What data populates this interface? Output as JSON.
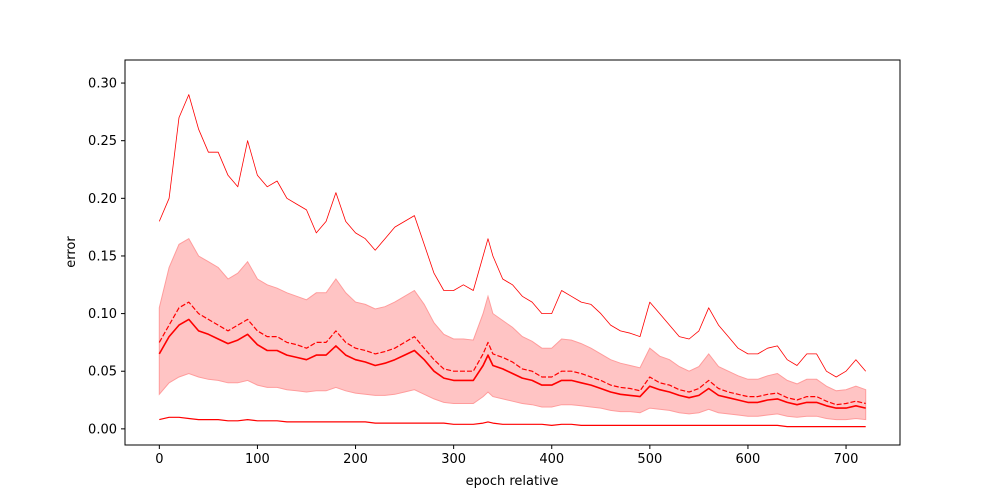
{
  "chart_data": {
    "type": "line",
    "xlabel": "epoch relative",
    "ylabel": "error",
    "xlim": [
      -35,
      755
    ],
    "ylim": [
      -0.014,
      0.32
    ],
    "xticks": [
      0,
      100,
      200,
      300,
      400,
      500,
      600,
      700
    ],
    "yticks": [
      0.0,
      0.05,
      0.1,
      0.15,
      0.2,
      0.25,
      0.3
    ],
    "xtick_labels": [
      "0",
      "100",
      "200",
      "300",
      "400",
      "500",
      "600",
      "700"
    ],
    "ytick_labels": [
      "0.00",
      "0.05",
      "0.10",
      "0.15",
      "0.20",
      "0.25",
      "0.30"
    ],
    "grid": false,
    "legend": "none",
    "colors": {
      "line": "#ff0000",
      "band": "#ffc4c4",
      "band_edge": "#ff9c9c"
    },
    "x": [
      0,
      10,
      20,
      30,
      40,
      50,
      60,
      70,
      80,
      90,
      100,
      110,
      120,
      130,
      140,
      150,
      160,
      170,
      180,
      190,
      200,
      210,
      220,
      230,
      240,
      250,
      260,
      270,
      280,
      290,
      300,
      310,
      320,
      330,
      335,
      340,
      350,
      360,
      370,
      380,
      390,
      400,
      410,
      420,
      430,
      440,
      450,
      460,
      470,
      480,
      490,
      500,
      510,
      520,
      530,
      540,
      550,
      560,
      570,
      580,
      590,
      600,
      610,
      620,
      630,
      640,
      650,
      660,
      670,
      680,
      690,
      700,
      710,
      720
    ],
    "series": [
      {
        "values": [
          0.18,
          0.2,
          0.27,
          0.29,
          0.26,
          0.24,
          0.24,
          0.22,
          0.21,
          0.25,
          0.22,
          0.21,
          0.215,
          0.2,
          0.195,
          0.19,
          0.17,
          0.18,
          0.205,
          0.18,
          0.17,
          0.165,
          0.155,
          0.165,
          0.175,
          0.18,
          0.185,
          0.16,
          0.135,
          0.12,
          0.12,
          0.125,
          0.12,
          0.15,
          0.165,
          0.15,
          0.13,
          0.125,
          0.115,
          0.11,
          0.1,
          0.1,
          0.12,
          0.115,
          0.11,
          0.108,
          0.1,
          0.09,
          0.085,
          0.083,
          0.08,
          0.11,
          0.1,
          0.09,
          0.08,
          0.078,
          0.085,
          0.105,
          0.09,
          0.08,
          0.07,
          0.065,
          0.065,
          0.07,
          0.072,
          0.06,
          0.055,
          0.065,
          0.065,
          0.05,
          0.045,
          0.05,
          0.06,
          0.05
        ]
      },
      {
        "values": [
          0.075,
          0.09,
          0.105,
          0.11,
          0.1,
          0.095,
          0.09,
          0.085,
          0.09,
          0.095,
          0.085,
          0.08,
          0.08,
          0.075,
          0.073,
          0.07,
          0.075,
          0.075,
          0.085,
          0.075,
          0.07,
          0.068,
          0.065,
          0.067,
          0.07,
          0.075,
          0.08,
          0.07,
          0.06,
          0.052,
          0.05,
          0.05,
          0.05,
          0.065,
          0.075,
          0.065,
          0.062,
          0.058,
          0.052,
          0.05,
          0.045,
          0.045,
          0.05,
          0.05,
          0.048,
          0.045,
          0.042,
          0.038,
          0.036,
          0.035,
          0.033,
          0.045,
          0.04,
          0.038,
          0.034,
          0.032,
          0.035,
          0.042,
          0.035,
          0.032,
          0.03,
          0.028,
          0.028,
          0.03,
          0.031,
          0.027,
          0.025,
          0.028,
          0.028,
          0.024,
          0.021,
          0.022,
          0.024,
          0.022
        ]
      },
      {
        "values": [
          0.065,
          0.08,
          0.09,
          0.095,
          0.085,
          0.082,
          0.078,
          0.074,
          0.077,
          0.082,
          0.073,
          0.068,
          0.068,
          0.064,
          0.062,
          0.06,
          0.064,
          0.064,
          0.072,
          0.064,
          0.06,
          0.058,
          0.055,
          0.057,
          0.06,
          0.064,
          0.068,
          0.06,
          0.05,
          0.044,
          0.042,
          0.042,
          0.042,
          0.055,
          0.064,
          0.055,
          0.052,
          0.048,
          0.044,
          0.042,
          0.038,
          0.038,
          0.042,
          0.042,
          0.04,
          0.038,
          0.035,
          0.032,
          0.03,
          0.029,
          0.028,
          0.037,
          0.034,
          0.032,
          0.029,
          0.027,
          0.029,
          0.035,
          0.029,
          0.027,
          0.025,
          0.023,
          0.023,
          0.025,
          0.026,
          0.023,
          0.021,
          0.023,
          0.023,
          0.02,
          0.018,
          0.018,
          0.02,
          0.018
        ]
      },
      {
        "values": [
          0.008,
          0.01,
          0.01,
          0.009,
          0.008,
          0.008,
          0.008,
          0.007,
          0.007,
          0.008,
          0.007,
          0.007,
          0.007,
          0.006,
          0.006,
          0.006,
          0.006,
          0.006,
          0.006,
          0.006,
          0.006,
          0.006,
          0.005,
          0.005,
          0.005,
          0.005,
          0.005,
          0.005,
          0.005,
          0.005,
          0.004,
          0.004,
          0.004,
          0.005,
          0.006,
          0.005,
          0.004,
          0.004,
          0.004,
          0.004,
          0.004,
          0.003,
          0.004,
          0.004,
          0.003,
          0.003,
          0.003,
          0.003,
          0.003,
          0.003,
          0.003,
          0.003,
          0.003,
          0.003,
          0.003,
          0.003,
          0.003,
          0.003,
          0.003,
          0.003,
          0.003,
          0.003,
          0.003,
          0.003,
          0.003,
          0.002,
          0.002,
          0.002,
          0.002,
          0.002,
          0.002,
          0.002,
          0.002,
          0.002
        ]
      }
    ],
    "band": {
      "lower": [
        0.03,
        0.04,
        0.045,
        0.048,
        0.045,
        0.043,
        0.042,
        0.04,
        0.04,
        0.042,
        0.038,
        0.036,
        0.036,
        0.034,
        0.033,
        0.032,
        0.033,
        0.033,
        0.036,
        0.033,
        0.031,
        0.03,
        0.029,
        0.029,
        0.03,
        0.032,
        0.034,
        0.03,
        0.026,
        0.023,
        0.022,
        0.022,
        0.022,
        0.028,
        0.032,
        0.028,
        0.026,
        0.024,
        0.022,
        0.021,
        0.019,
        0.019,
        0.021,
        0.021,
        0.02,
        0.019,
        0.018,
        0.016,
        0.015,
        0.015,
        0.014,
        0.018,
        0.017,
        0.016,
        0.014,
        0.013,
        0.014,
        0.017,
        0.014,
        0.013,
        0.012,
        0.011,
        0.011,
        0.012,
        0.013,
        0.011,
        0.01,
        0.011,
        0.011,
        0.009,
        0.008,
        0.008,
        0.009,
        0.008
      ],
      "upper": [
        0.105,
        0.14,
        0.16,
        0.165,
        0.15,
        0.145,
        0.14,
        0.13,
        0.135,
        0.145,
        0.13,
        0.125,
        0.122,
        0.118,
        0.115,
        0.112,
        0.118,
        0.118,
        0.13,
        0.118,
        0.11,
        0.108,
        0.104,
        0.106,
        0.11,
        0.115,
        0.12,
        0.108,
        0.092,
        0.082,
        0.078,
        0.078,
        0.077,
        0.1,
        0.115,
        0.1,
        0.094,
        0.088,
        0.08,
        0.076,
        0.07,
        0.07,
        0.078,
        0.077,
        0.074,
        0.07,
        0.065,
        0.06,
        0.057,
        0.055,
        0.053,
        0.07,
        0.063,
        0.06,
        0.054,
        0.05,
        0.054,
        0.065,
        0.054,
        0.05,
        0.046,
        0.043,
        0.043,
        0.046,
        0.048,
        0.042,
        0.039,
        0.043,
        0.043,
        0.037,
        0.033,
        0.034,
        0.037,
        0.034
      ]
    }
  }
}
